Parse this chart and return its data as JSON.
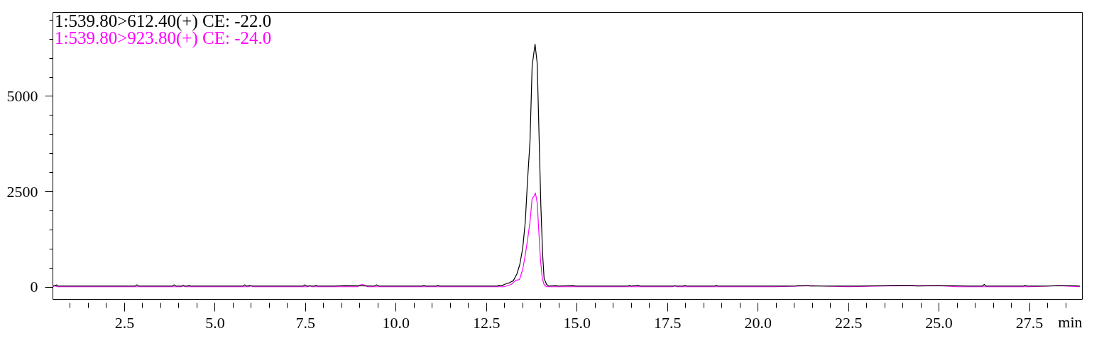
{
  "chart_data": {
    "type": "line",
    "xlabel": "min",
    "legend": "top left",
    "xlim": [
      0.52,
      28.96
    ],
    "xticks": [
      {
        "value": 1,
        "label": null
      },
      {
        "value": 1.5,
        "label": null
      },
      {
        "value": 2,
        "label": null
      },
      2.5,
      {
        "value": 3,
        "label": null
      },
      {
        "value": 3.5,
        "label": null
      },
      {
        "value": 4,
        "label": null
      },
      {
        "value": 4.5,
        "label": null
      },
      {
        "value": 5,
        "label": "5.0"
      },
      {
        "value": 5.5,
        "label": null
      },
      {
        "value": 6,
        "label": null
      },
      {
        "value": 6.5,
        "label": null
      },
      {
        "value": 7,
        "label": null
      },
      7.5,
      {
        "value": 8,
        "label": null
      },
      {
        "value": 8.5,
        "label": null
      },
      {
        "value": 9,
        "label": null
      },
      {
        "value": 9.5,
        "label": null
      },
      {
        "value": 10,
        "label": "10.0"
      },
      {
        "value": 10.5,
        "label": null
      },
      {
        "value": 11,
        "label": null
      },
      {
        "value": 11.5,
        "label": null
      },
      {
        "value": 12,
        "label": null
      },
      12.5,
      {
        "value": 13,
        "label": null
      },
      {
        "value": 13.5,
        "label": null
      },
      {
        "value": 14,
        "label": null
      },
      {
        "value": 14.5,
        "label": null
      },
      {
        "value": 15,
        "label": "15.0"
      },
      {
        "value": 15.5,
        "label": null
      },
      {
        "value": 16,
        "label": null
      },
      {
        "value": 16.5,
        "label": null
      },
      {
        "value": 17,
        "label": null
      },
      17.5,
      {
        "value": 18,
        "label": null
      },
      {
        "value": 18.5,
        "label": null
      },
      {
        "value": 19,
        "label": null
      },
      {
        "value": 19.5,
        "label": null
      },
      {
        "value": 20,
        "label": "20.0"
      },
      {
        "value": 20.5,
        "label": null
      },
      {
        "value": 21,
        "label": null
      },
      {
        "value": 21.5,
        "label": null
      },
      {
        "value": 22,
        "label": null
      },
      22.5,
      {
        "value": 23,
        "label": null
      },
      {
        "value": 23.5,
        "label": null
      },
      {
        "value": 24,
        "label": null
      },
      {
        "value": 24.5,
        "label": null
      },
      {
        "value": 25,
        "label": "25.0"
      },
      {
        "value": 25.5,
        "label": null
      },
      {
        "value": 26,
        "label": null
      },
      {
        "value": 26.5,
        "label": null
      },
      {
        "value": 27,
        "label": null
      },
      27.5,
      {
        "value": 28,
        "label": null
      },
      {
        "value": 28.5,
        "label": null
      }
    ],
    "ylim": [
      -320,
      7200
    ],
    "yticks": [
      0,
      {
        "value": 500,
        "label": null
      },
      {
        "value": 1000,
        "label": null
      },
      {
        "value": 1500,
        "label": null
      },
      {
        "value": 2000,
        "label": null
      },
      2500,
      {
        "value": 3000,
        "label": null
      },
      {
        "value": 3500,
        "label": null
      },
      {
        "value": 4000,
        "label": null
      },
      {
        "value": 4500,
        "label": null
      },
      5000,
      {
        "value": 5500,
        "label": null
      },
      {
        "value": 6000,
        "label": null
      },
      {
        "value": 6500,
        "label": null
      },
      {
        "value": 7000,
        "label": null
      }
    ],
    "series": [
      {
        "name": "1:539.80>612.40(+) CE: -22.0",
        "color": "#000000",
        "x": [
          0.53,
          0.6,
          0.63,
          0.68,
          1.5,
          2.2,
          2.8,
          2.85,
          2.91,
          3.83,
          3.88,
          3.94,
          4.25,
          4.29,
          4.34,
          5.0,
          5.78,
          5.83,
          5.88,
          5.96,
          6.02,
          6.9,
          7.44,
          7.49,
          7.54,
          7.75,
          7.8,
          7.85,
          8.3,
          8.6,
          9.4,
          9.47,
          9.55,
          10.2,
          10.73,
          10.78,
          10.83,
          11.12,
          11.17,
          11.22,
          12.0,
          12.6,
          12.8,
          12.85,
          12.93,
          13.05,
          13.15,
          13.25,
          13.35,
          13.43,
          13.51,
          13.58,
          13.64,
          13.71,
          13.77,
          13.85,
          13.91,
          13.96,
          14.01,
          14.06,
          14.1,
          14.17,
          14.23,
          14.43,
          14.48,
          14.92,
          14.97,
          15.6,
          16.41,
          16.46,
          16.51,
          16.7,
          16.75,
          17.3,
          17.94,
          17.99,
          18.04,
          18.81,
          18.86,
          18.91,
          19.5,
          20.3,
          21.05,
          21.1,
          21.4,
          21.45,
          22.0,
          22.8,
          23.5,
          24.0,
          24.2,
          24.4,
          25.0,
          25.3,
          25.8,
          26.21,
          26.26,
          26.31,
          26.8,
          27.34,
          27.39,
          27.44,
          28.0,
          28.4,
          28.65,
          28.9
        ],
        "values": [
          20,
          30,
          50,
          20,
          20,
          20,
          20,
          50,
          20,
          20,
          50,
          20,
          20,
          40,
          20,
          20,
          20,
          50,
          20,
          30,
          20,
          20,
          20,
          50,
          20,
          20,
          40,
          20,
          20,
          30,
          20,
          50,
          20,
          20,
          20,
          40,
          20,
          20,
          40,
          20,
          20,
          20,
          20,
          40,
          30,
          80,
          110,
          160,
          340,
          590,
          1020,
          1700,
          2750,
          3800,
          5790,
          6360,
          5850,
          3990,
          2140,
          840,
          220,
          60,
          20,
          30,
          20,
          30,
          20,
          20,
          20,
          40,
          20,
          40,
          20,
          20,
          20,
          40,
          20,
          20,
          40,
          20,
          20,
          20,
          20,
          30,
          30,
          20,
          20,
          20,
          30,
          40,
          40,
          20,
          30,
          30,
          20,
          20,
          60,
          20,
          20,
          20,
          40,
          20,
          20,
          30,
          30,
          20
        ]
      },
      {
        "name": "1:539.80>923.80(+) CE: -24.0",
        "color": "#ff00ff",
        "x": [
          0.53,
          0.58,
          0.65,
          2.0,
          3.5,
          4.08,
          4.13,
          4.18,
          5.5,
          5.95,
          6.0,
          6.05,
          7.58,
          7.63,
          7.68,
          8.95,
          9.0,
          9.08,
          9.15,
          9.22,
          10.5,
          11.5,
          12.5,
          12.99,
          13.19,
          13.32,
          13.42,
          13.51,
          13.58,
          13.64,
          13.71,
          13.77,
          13.82,
          13.86,
          13.91,
          13.95,
          14.0,
          14.05,
          14.1,
          14.17,
          15.5,
          17.0,
          17.66,
          17.71,
          17.76,
          19.0,
          20.5,
          21.5,
          22.5,
          23.9,
          24.1,
          24.3,
          25.0,
          25.5,
          26.5,
          27.5,
          28.3,
          28.9
        ],
        "values": [
          0,
          30,
          0,
          0,
          0,
          0,
          50,
          0,
          0,
          0,
          40,
          0,
          0,
          40,
          0,
          0,
          40,
          60,
          40,
          0,
          0,
          0,
          0,
          0,
          60,
          170,
          190,
          460,
          840,
          1210,
          1700,
          2320,
          2370,
          2460,
          2200,
          1520,
          710,
          220,
          60,
          0,
          0,
          0,
          0,
          40,
          0,
          0,
          0,
          30,
          0,
          30,
          40,
          30,
          30,
          0,
          0,
          0,
          30,
          0
        ]
      }
    ]
  }
}
